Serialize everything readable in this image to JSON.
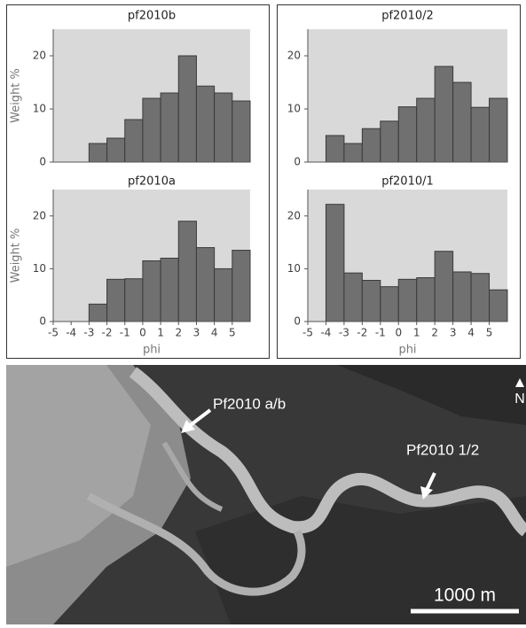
{
  "chart_data": [
    {
      "type": "histogram",
      "title": "pf2010b",
      "ylabel": "Weight %",
      "bins": [
        -5,
        -4,
        -3,
        -2,
        -1,
        0,
        1,
        2,
        3,
        4,
        5,
        6
      ],
      "values": [
        0,
        0,
        3.5,
        4.5,
        8,
        12,
        13,
        20,
        14.3,
        13,
        11.5
      ],
      "color": "#707070",
      "background": "#d9d9d9",
      "xlim": [
        -5,
        6
      ],
      "ylim": [
        0,
        25
      ],
      "yticks": [
        0,
        10,
        20
      ]
    },
    {
      "type": "histogram",
      "title": "pf2010/2",
      "bins": [
        -5,
        -4,
        -3,
        -2,
        -1,
        0,
        1,
        2,
        3,
        4,
        5,
        6
      ],
      "values": [
        0,
        5,
        3.5,
        6.3,
        7.7,
        10.4,
        12,
        18,
        15,
        10.3,
        12
      ],
      "color": "#707070",
      "background": "#d9d9d9",
      "xlim": [
        -5,
        6
      ],
      "ylim": [
        0,
        25
      ],
      "yticks": [
        0,
        10,
        20
      ]
    },
    {
      "type": "histogram",
      "title": "pf2010a",
      "ylabel": "Weight %",
      "xlabel": "phi",
      "bins": [
        -5,
        -4,
        -3,
        -2,
        -1,
        0,
        1,
        2,
        3,
        4,
        5,
        6
      ],
      "values": [
        0,
        0,
        3.3,
        8,
        8.1,
        11.5,
        12,
        19,
        14,
        10,
        13.5
      ],
      "color": "#707070",
      "background": "#d9d9d9",
      "xlim": [
        -5,
        6
      ],
      "ylim": [
        0,
        25
      ],
      "yticks": [
        0,
        10,
        20
      ],
      "xticks": [
        -5,
        -4,
        -3,
        -2,
        -1,
        0,
        1,
        2,
        3,
        4,
        5
      ]
    },
    {
      "type": "histogram",
      "title": "pf2010/1",
      "xlabel": "phi",
      "bins": [
        -5,
        -4,
        -3,
        -2,
        -1,
        0,
        1,
        2,
        3,
        4,
        5,
        6
      ],
      "values": [
        0,
        22.2,
        9.2,
        7.8,
        6.6,
        8,
        8.3,
        13.3,
        9.4,
        9.1,
        6
      ],
      "color": "#707070",
      "background": "#d9d9d9",
      "xlim": [
        -5,
        6
      ],
      "ylim": [
        0,
        25
      ],
      "yticks": [
        0,
        10,
        20
      ],
      "xticks": [
        -5,
        -4,
        -3,
        -2,
        -1,
        0,
        1,
        2,
        3,
        4,
        5
      ]
    }
  ],
  "map": {
    "labels": [
      "Pf2010 a/b",
      "Pf2010 1/2"
    ],
    "north": "N",
    "scale_bar": "1000 m"
  }
}
